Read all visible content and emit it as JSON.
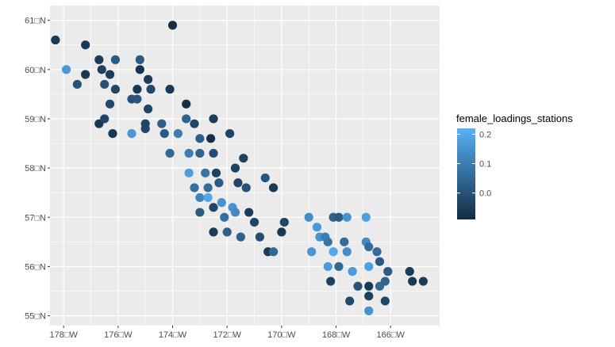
{
  "chart_data": {
    "type": "scatter",
    "title": "",
    "xlabel": "",
    "ylabel": "",
    "xlim": [
      -178.5,
      -164.2
    ],
    "ylim": [
      54.8,
      61.3
    ],
    "x_ticks": [
      {
        "value": -178,
        "label": "178□W"
      },
      {
        "value": -176,
        "label": "176□W"
      },
      {
        "value": -174,
        "label": "174□W"
      },
      {
        "value": -172,
        "label": "172□W"
      },
      {
        "value": -170,
        "label": "170□W"
      },
      {
        "value": -168,
        "label": "168□W"
      },
      {
        "value": -166,
        "label": "166□W"
      }
    ],
    "y_ticks": [
      {
        "value": 55,
        "label": "55□N"
      },
      {
        "value": 56,
        "label": "56□N"
      },
      {
        "value": 57,
        "label": "57□N"
      },
      {
        "value": 58,
        "label": "58□N"
      },
      {
        "value": 59,
        "label": "59□N"
      },
      {
        "value": 60,
        "label": "60□N"
      },
      {
        "value": 61,
        "label": "61□N"
      }
    ],
    "grid": true,
    "panel_background": "#ebebeb",
    "grid_color": "#ffffff",
    "legend": {
      "title": "female_loadings_stations",
      "position": "right",
      "min": -0.09,
      "max": 0.22,
      "low_color": "#132b43",
      "high_color": "#56b1f7",
      "ticks": [
        {
          "value": 0.0,
          "label": "0.0"
        },
        {
          "value": 0.1,
          "label": "0.1"
        },
        {
          "value": 0.2,
          "label": "0.2"
        }
      ]
    },
    "points": [
      {
        "x": -178.3,
        "y": 60.6,
        "v": -0.06
      },
      {
        "x": -177.9,
        "y": 60.0,
        "v": 0.16
      },
      {
        "x": -177.5,
        "y": 59.7,
        "v": 0.0
      },
      {
        "x": -177.2,
        "y": 59.9,
        "v": -0.06
      },
      {
        "x": -177.2,
        "y": 60.5,
        "v": -0.06
      },
      {
        "x": -176.7,
        "y": 60.2,
        "v": -0.05
      },
      {
        "x": -176.6,
        "y": 60.0,
        "v": -0.04
      },
      {
        "x": -176.5,
        "y": 59.7,
        "v": 0.0
      },
      {
        "x": -176.3,
        "y": 59.9,
        "v": -0.05
      },
      {
        "x": -176.1,
        "y": 60.2,
        "v": 0.02
      },
      {
        "x": -176.1,
        "y": 59.6,
        "v": -0.03
      },
      {
        "x": -176.3,
        "y": 59.3,
        "v": -0.02
      },
      {
        "x": -176.7,
        "y": 58.9,
        "v": -0.06
      },
      {
        "x": -176.5,
        "y": 59.0,
        "v": -0.03
      },
      {
        "x": -176.2,
        "y": 58.7,
        "v": -0.06
      },
      {
        "x": -175.5,
        "y": 58.7,
        "v": 0.16
      },
      {
        "x": -175.5,
        "y": 59.4,
        "v": 0.0
      },
      {
        "x": -175.3,
        "y": 59.6,
        "v": -0.06
      },
      {
        "x": -175.3,
        "y": 59.4,
        "v": 0.01
      },
      {
        "x": -175.2,
        "y": 60.2,
        "v": 0.02
      },
      {
        "x": -175.2,
        "y": 60.0,
        "v": -0.07
      },
      {
        "x": -174.9,
        "y": 59.8,
        "v": -0.05
      },
      {
        "x": -174.8,
        "y": 59.6,
        "v": -0.02
      },
      {
        "x": -175.0,
        "y": 58.9,
        "v": -0.03
      },
      {
        "x": -175.0,
        "y": 58.8,
        "v": -0.03
      },
      {
        "x": -174.9,
        "y": 59.2,
        "v": -0.03
      },
      {
        "x": -174.0,
        "y": 60.9,
        "v": -0.08
      },
      {
        "x": -174.1,
        "y": 59.6,
        "v": -0.06
      },
      {
        "x": -174.4,
        "y": 58.9,
        "v": 0.03
      },
      {
        "x": -174.3,
        "y": 58.7,
        "v": 0.02
      },
      {
        "x": -174.1,
        "y": 58.3,
        "v": 0.05
      },
      {
        "x": -173.8,
        "y": 58.7,
        "v": 0.1
      },
      {
        "x": -173.5,
        "y": 59.3,
        "v": -0.08
      },
      {
        "x": -173.5,
        "y": 59.0,
        "v": 0.04
      },
      {
        "x": -173.4,
        "y": 58.3,
        "v": 0.1
      },
      {
        "x": -173.4,
        "y": 57.9,
        "v": 0.18
      },
      {
        "x": -173.2,
        "y": 58.9,
        "v": -0.03
      },
      {
        "x": -173.0,
        "y": 58.6,
        "v": 0.03
      },
      {
        "x": -173.0,
        "y": 58.3,
        "v": 0.04
      },
      {
        "x": -172.8,
        "y": 57.9,
        "v": 0.08
      },
      {
        "x": -172.6,
        "y": 58.6,
        "v": -0.08
      },
      {
        "x": -172.5,
        "y": 59.0,
        "v": -0.05
      },
      {
        "x": -172.5,
        "y": 58.3,
        "v": -0.01
      },
      {
        "x": -172.4,
        "y": 57.9,
        "v": -0.04
      },
      {
        "x": -173.2,
        "y": 57.6,
        "v": 0.07
      },
      {
        "x": -173.0,
        "y": 57.4,
        "v": 0.12
      },
      {
        "x": -172.7,
        "y": 57.6,
        "v": 0.06
      },
      {
        "x": -172.7,
        "y": 57.4,
        "v": 0.2
      },
      {
        "x": -173.0,
        "y": 57.1,
        "v": 0.02
      },
      {
        "x": -172.5,
        "y": 57.2,
        "v": -0.03
      },
      {
        "x": -172.2,
        "y": 57.3,
        "v": 0.15
      },
      {
        "x": -172.3,
        "y": 57.7,
        "v": 0.02
      },
      {
        "x": -172.1,
        "y": 57.0,
        "v": 0.07
      },
      {
        "x": -171.9,
        "y": 58.7,
        "v": -0.03
      },
      {
        "x": -171.7,
        "y": 58.0,
        "v": -0.04
      },
      {
        "x": -171.8,
        "y": 57.2,
        "v": 0.15
      },
      {
        "x": -171.7,
        "y": 57.1,
        "v": 0.13
      },
      {
        "x": -171.6,
        "y": 57.7,
        "v": -0.03
      },
      {
        "x": -171.4,
        "y": 58.2,
        "v": -0.04
      },
      {
        "x": -171.3,
        "y": 57.6,
        "v": 0.0
      },
      {
        "x": -172.5,
        "y": 56.7,
        "v": -0.05
      },
      {
        "x": -172.0,
        "y": 56.7,
        "v": 0.03
      },
      {
        "x": -171.5,
        "y": 56.6,
        "v": 0.04
      },
      {
        "x": -171.2,
        "y": 57.1,
        "v": -0.05
      },
      {
        "x": -171.0,
        "y": 56.9,
        "v": -0.03
      },
      {
        "x": -170.8,
        "y": 56.6,
        "v": -0.01
      },
      {
        "x": -170.6,
        "y": 57.8,
        "v": 0.01
      },
      {
        "x": -170.3,
        "y": 57.6,
        "v": -0.06
      },
      {
        "x": -170.5,
        "y": 56.3,
        "v": -0.05
      },
      {
        "x": -170.3,
        "y": 56.3,
        "v": 0.05
      },
      {
        "x": -170.0,
        "y": 56.7,
        "v": -0.06
      },
      {
        "x": -169.9,
        "y": 56.9,
        "v": -0.03
      },
      {
        "x": -169.0,
        "y": 57.0,
        "v": 0.14
      },
      {
        "x": -168.7,
        "y": 56.8,
        "v": 0.16
      },
      {
        "x": -168.9,
        "y": 56.3,
        "v": 0.16
      },
      {
        "x": -168.6,
        "y": 56.6,
        "v": 0.15
      },
      {
        "x": -168.4,
        "y": 56.6,
        "v": 0.1
      },
      {
        "x": -168.3,
        "y": 56.5,
        "v": 0.08
      },
      {
        "x": -168.1,
        "y": 57.0,
        "v": 0.04
      },
      {
        "x": -167.9,
        "y": 57.0,
        "v": 0.02
      },
      {
        "x": -167.6,
        "y": 57.0,
        "v": 0.15
      },
      {
        "x": -167.7,
        "y": 56.5,
        "v": 0.06
      },
      {
        "x": -167.6,
        "y": 56.3,
        "v": 0.14
      },
      {
        "x": -168.1,
        "y": 56.3,
        "v": 0.2
      },
      {
        "x": -168.3,
        "y": 56.0,
        "v": 0.17
      },
      {
        "x": -168.2,
        "y": 55.7,
        "v": -0.04
      },
      {
        "x": -167.9,
        "y": 56.0,
        "v": 0.05
      },
      {
        "x": -167.4,
        "y": 55.9,
        "v": 0.17
      },
      {
        "x": -166.9,
        "y": 57.0,
        "v": 0.18
      },
      {
        "x": -166.9,
        "y": 56.5,
        "v": 0.13
      },
      {
        "x": -166.8,
        "y": 56.4,
        "v": 0.06
      },
      {
        "x": -166.8,
        "y": 56.0,
        "v": 0.18
      },
      {
        "x": -166.5,
        "y": 56.3,
        "v": 0.06
      },
      {
        "x": -166.4,
        "y": 56.1,
        "v": 0.02
      },
      {
        "x": -166.1,
        "y": 55.9,
        "v": 0.02
      },
      {
        "x": -167.5,
        "y": 55.3,
        "v": -0.02
      },
      {
        "x": -167.2,
        "y": 55.6,
        "v": 0.0
      },
      {
        "x": -166.8,
        "y": 55.6,
        "v": -0.06
      },
      {
        "x": -166.8,
        "y": 55.4,
        "v": -0.04
      },
      {
        "x": -166.8,
        "y": 55.1,
        "v": 0.15
      },
      {
        "x": -166.4,
        "y": 55.6,
        "v": 0.05
      },
      {
        "x": -166.2,
        "y": 55.7,
        "v": 0.04
      },
      {
        "x": -166.2,
        "y": 55.3,
        "v": -0.03
      },
      {
        "x": -165.3,
        "y": 55.9,
        "v": -0.05
      },
      {
        "x": -165.2,
        "y": 55.7,
        "v": -0.06
      },
      {
        "x": -164.8,
        "y": 55.7,
        "v": -0.05
      }
    ]
  }
}
